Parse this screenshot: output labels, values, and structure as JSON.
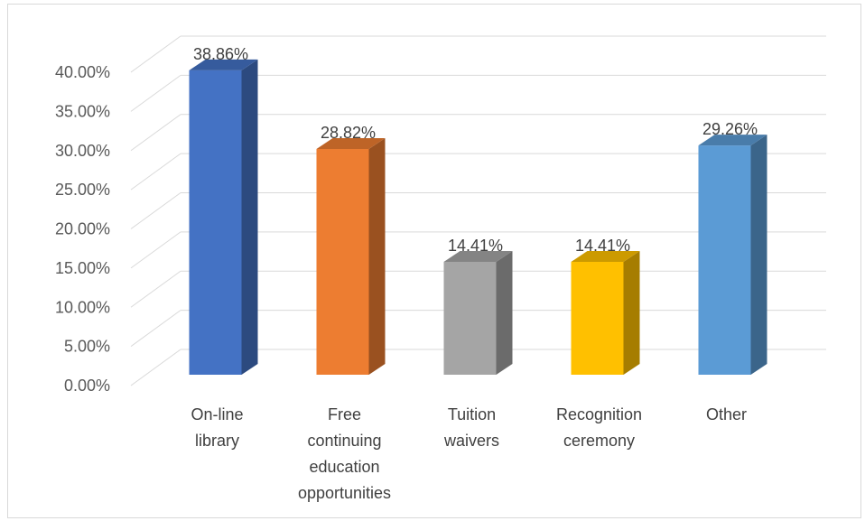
{
  "chart_data": {
    "type": "bar",
    "categories": [
      [
        "On-line",
        "library"
      ],
      [
        "Free",
        "continuing",
        "education",
        "opportunities"
      ],
      [
        "Tuition",
        "waivers"
      ],
      [
        "Recognition",
        "ceremony"
      ],
      [
        "Other"
      ]
    ],
    "values": [
      38.86,
      28.82,
      14.41,
      14.41,
      29.26
    ],
    "data_labels": [
      "38.86%",
      "28.82%",
      "14.41%",
      "14.41%",
      "29.26%"
    ],
    "bar_colors": [
      "#4472c4",
      "#ed7d31",
      "#a5a5a5",
      "#ffc000",
      "#5b9bd5"
    ],
    "ylim": [
      0,
      40
    ],
    "y_ticks": [
      "0.00%",
      "5.00%",
      "10.00%",
      "15.00%",
      "20.00%",
      "25.00%",
      "30.00%",
      "35.00%",
      "40.00%"
    ],
    "grid": true,
    "style": "3d-column",
    "title": "",
    "xlabel": "",
    "ylabel": ""
  }
}
